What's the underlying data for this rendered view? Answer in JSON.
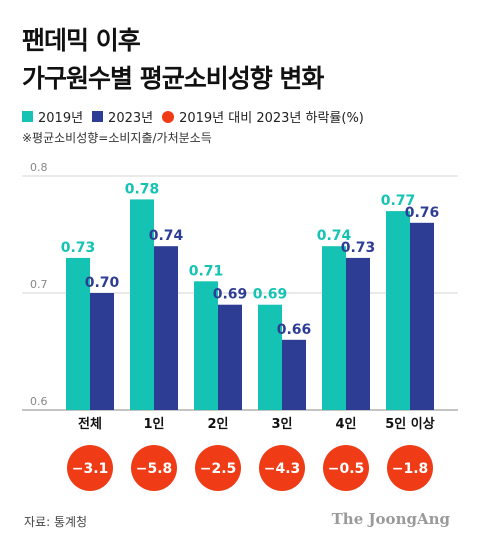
{
  "header": {
    "title_line1": "팬데믹 이후",
    "title_line2": "가구원수별 평균소비성향 변화",
    "note": "※평균소비성향=소비지출/가처분소득"
  },
  "legend": {
    "items": [
      {
        "label": "2019년",
        "color": "#14c3b3",
        "shape": "square"
      },
      {
        "label": "2023년",
        "color": "#2e3d94",
        "shape": "square"
      },
      {
        "label": "2019년 대비 2023년 하락률(%)",
        "color": "#f03b17",
        "shape": "circle"
      }
    ]
  },
  "footer": {
    "source": "자료: 통계청",
    "brand": "The JoongAng"
  },
  "chart_data": {
    "type": "bar",
    "categories": [
      "전체",
      "1인",
      "2인",
      "3인",
      "4인",
      "5인 이상"
    ],
    "series": [
      {
        "name": "2019년",
        "values": [
          0.73,
          0.78,
          0.71,
          0.69,
          0.74,
          0.77
        ],
        "labels": [
          "0.73",
          "0.78",
          "0.71",
          "0.69",
          "0.74",
          "0.77"
        ],
        "color": "#14c3b3",
        "label_color": "#14c3b3"
      },
      {
        "name": "2023년",
        "values": [
          0.7,
          0.74,
          0.69,
          0.66,
          0.73,
          0.76
        ],
        "labels": [
          "0.70",
          "0.74",
          "0.69",
          "0.66",
          "0.73",
          "0.76"
        ],
        "color": "#2e3d94",
        "label_color": "#2e3d94"
      }
    ],
    "decline": {
      "name": "2019년 대비 2023년 하락률(%)",
      "values": [
        -3.1,
        -5.8,
        -2.5,
        -4.3,
        -0.5,
        -1.8
      ],
      "labels": [
        "−3.1",
        "−5.8",
        "−2.5",
        "−4.3",
        "−0.5",
        "−1.8"
      ],
      "color": "#f03b17"
    },
    "yticks": [
      0.6,
      0.7,
      0.8
    ],
    "ytick_labels": [
      "0.6",
      "0.7",
      "0.8"
    ],
    "ylim": [
      0.6,
      0.8
    ],
    "grid": true,
    "legend_position": "top-left"
  }
}
